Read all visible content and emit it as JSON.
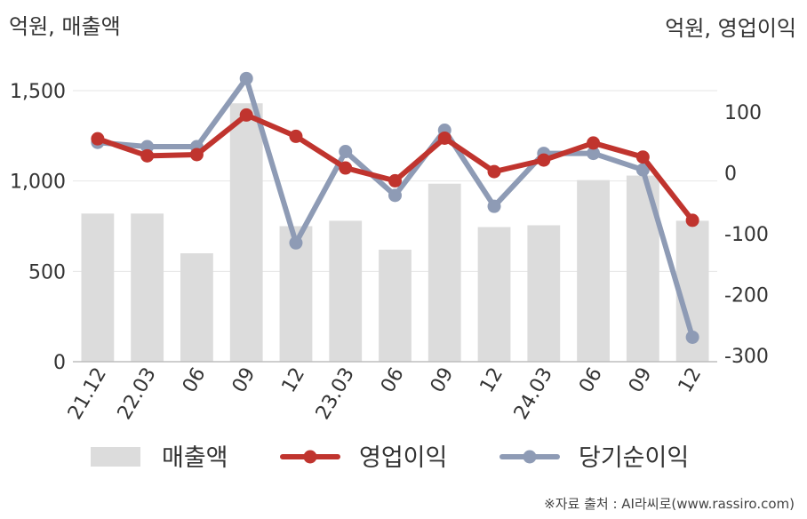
{
  "chart_data": {
    "type": "bar+line",
    "left_axis_unit": "억원, 매출액",
    "right_axis_unit": "억원, 영업이익",
    "categories": [
      "21.12",
      "22.03",
      "06",
      "09",
      "12",
      "23.03",
      "06",
      "09",
      "12",
      "24.03",
      "06",
      "09",
      "12"
    ],
    "series": [
      {
        "name": "매출액",
        "type": "bar",
        "axis": "left",
        "color": "#dcdcdc",
        "values": [
          820,
          820,
          600,
          1430,
          750,
          780,
          620,
          985,
          745,
          755,
          1005,
          1030,
          780
        ]
      },
      {
        "name": "영업이익",
        "type": "line",
        "axis": "right",
        "color": "#c0342e",
        "values": [
          56,
          28,
          30,
          95,
          60,
          8,
          -13,
          57,
          2,
          21,
          49,
          26,
          -78
        ]
      },
      {
        "name": "당기순이익",
        "type": "line",
        "axis": "right",
        "color": "#8e9bb5",
        "values": [
          50,
          43,
          43,
          155,
          -115,
          35,
          -37,
          70,
          -55,
          32,
          32,
          5,
          -270
        ]
      }
    ],
    "left_axis": {
      "min": 0,
      "max": 1500,
      "ticks": [
        0,
        500,
        1000,
        1500
      ],
      "tick_labels": [
        "0",
        "500",
        "1,000",
        "1,500"
      ]
    },
    "right_axis": {
      "min": -300,
      "max": 100,
      "ticks": [
        -300,
        -200,
        -100,
        0,
        100
      ],
      "tick_labels": [
        "-300",
        "-200",
        "-100",
        "0",
        "100"
      ]
    },
    "grid": true,
    "legend_position": "bottom"
  },
  "source": "※자료 출처 : AI라씨로(www.rassiro.com)"
}
